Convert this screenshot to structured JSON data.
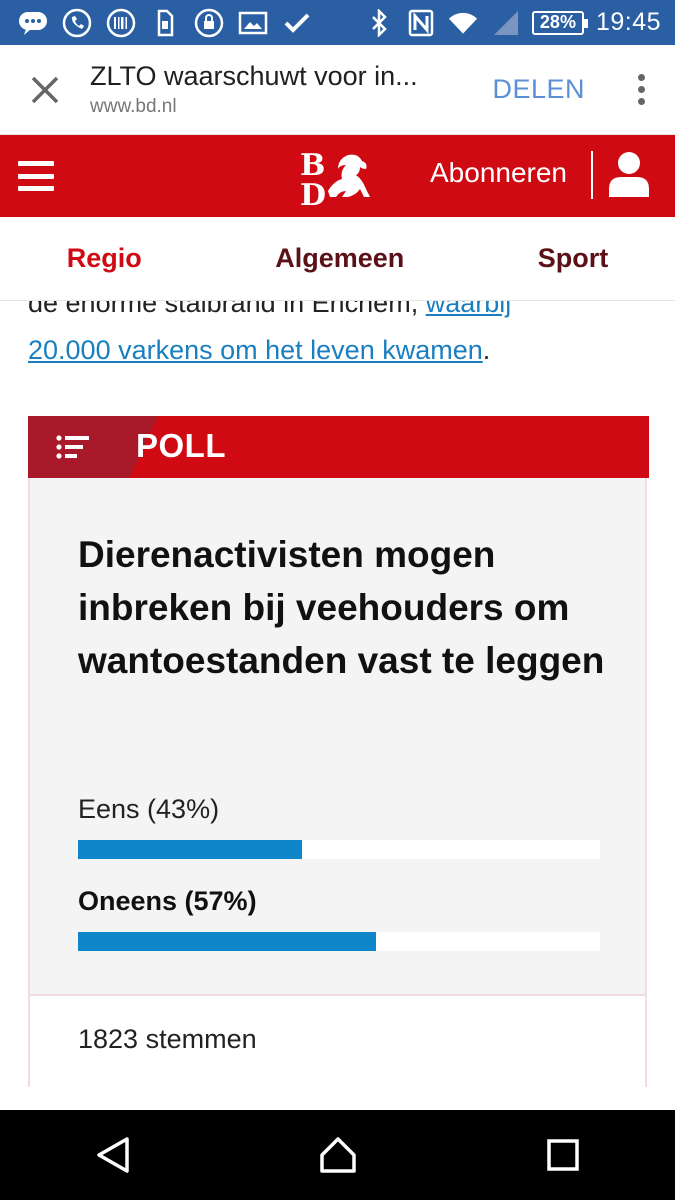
{
  "statusbar": {
    "battery": "28%",
    "time": "19:45",
    "icons": [
      "chat-bubble-icon",
      "phone-icon",
      "barcode-icon",
      "sim-icon",
      "lock-icon",
      "image-icon",
      "check-icon",
      "bluetooth-icon",
      "nfc-icon",
      "wifi-icon",
      "signal-icon"
    ]
  },
  "browser": {
    "title": "ZLTO waarschuwt voor in...",
    "host": "www.bd.nl",
    "share_label": "DELEN"
  },
  "header": {
    "logo_text": "BD",
    "subscribe_label": "Abonneren",
    "brand_color": "#cf0a13"
  },
  "categories": [
    {
      "label": "Regio"
    },
    {
      "label": "Algemeen"
    },
    {
      "label": "Sport"
    }
  ],
  "article": {
    "text_before": "de enorme stalbrand in Erichem, ",
    "link_text_line1": "waarbij",
    "link_text_line2": "20.000 varkens om het leven kwamen",
    "text_after": "."
  },
  "poll": {
    "label": "POLL",
    "question": "Dierenactivisten mogen inbreken bij veehouders om wantoestanden vast te leggen",
    "options": [
      {
        "label": "Eens (43%)",
        "percent": 43
      },
      {
        "label": "Oneens (57%)",
        "percent": 57
      }
    ],
    "votes": "1823 stemmen"
  },
  "navbar": {
    "icons": [
      "back-icon",
      "home-icon",
      "recents-icon"
    ]
  }
}
